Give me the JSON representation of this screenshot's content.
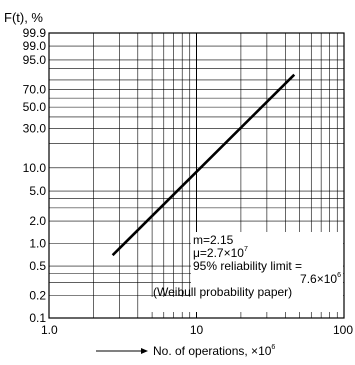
{
  "chart_data": {
    "type": "line",
    "title": "F(t), %",
    "xlabel": {
      "text": "No. of operations, ×10",
      "exponent": "6"
    },
    "ylabel": "",
    "x_scale": "log",
    "y_scale": "weibull",
    "xlim": [
      1,
      100
    ],
    "ylim": [
      0.1,
      99.9
    ],
    "grid": true,
    "x_ticks": [
      {
        "value": 1,
        "label": "1.0"
      },
      {
        "value": 10,
        "label": "10"
      },
      {
        "value": 100,
        "label": "100"
      }
    ],
    "y_ticks": [
      {
        "value": 0.1,
        "label": "0.1"
      },
      {
        "value": 0.2,
        "label": "0.2"
      },
      {
        "value": 0.5,
        "label": "0.5"
      },
      {
        "value": 1.0,
        "label": "1.0"
      },
      {
        "value": 2.0,
        "label": "2.0"
      },
      {
        "value": 5.0,
        "label": "5.0"
      },
      {
        "value": 10.0,
        "label": "10.0"
      },
      {
        "value": 30.0,
        "label": "30.0"
      },
      {
        "value": 50.0,
        "label": "50.0"
      },
      {
        "value": 70.0,
        "label": "70.0"
      },
      {
        "value": 95.0,
        "label": "95.0"
      },
      {
        "value": 99.0,
        "label": "99.0"
      },
      {
        "value": 99.9,
        "label": "99.9"
      }
    ],
    "y_minor_gridlines": [
      0.3,
      0.4,
      3.0,
      4.0,
      20.0,
      40.0,
      60.0,
      80.0,
      90.0
    ],
    "series": [
      {
        "x": [
          2.7,
          46
        ],
        "y": [
          0.7,
          85
        ]
      }
    ],
    "annotations": [
      {
        "text": "m=2.15"
      },
      {
        "text": "μ=2.7×10",
        "exponent": "7"
      },
      {
        "text": "95% reliability limit ="
      },
      {
        "text": "7.6×10",
        "exponent": "6"
      },
      {
        "text": "(Weibull probability paper)"
      }
    ],
    "colors": {
      "line": "#000000",
      "grid": "#000000",
      "background": "#ffffff"
    }
  }
}
